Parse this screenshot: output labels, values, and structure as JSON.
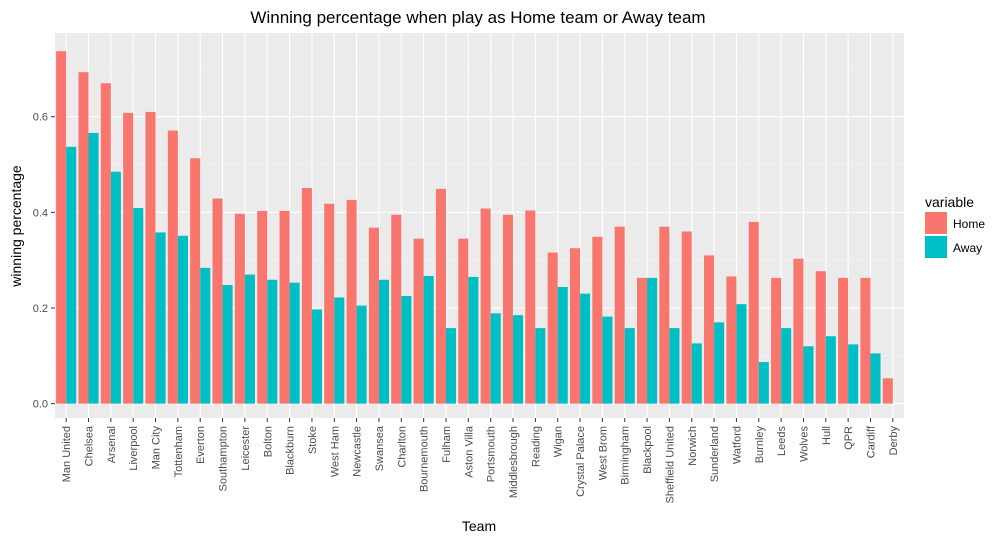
{
  "chart_data": {
    "type": "bar",
    "title": "Winning percentage when play as Home team or Away team",
    "xlabel": "Team",
    "ylabel": "winning percentage",
    "ylim": [
      -0.03,
      0.775
    ],
    "yticks": [
      "0.0",
      "0.2",
      "0.4",
      "0.6"
    ],
    "grid": true,
    "legend": {
      "title": "variable",
      "placement": "right",
      "entries": [
        {
          "label": "Home",
          "color": "#F8766D"
        },
        {
          "label": "Away",
          "color": "#00BFC4"
        }
      ]
    },
    "categories": [
      "Man United",
      "Chelsea",
      "Arsenal",
      "Liverpool",
      "Man City",
      "Tottenham",
      "Everton",
      "Southampton",
      "Leicester",
      "Bolton",
      "Blackburn",
      "Stoke",
      "West Ham",
      "Newcastle",
      "Swansea",
      "Charlton",
      "Bournemouth",
      "Fulham",
      "Aston Villa",
      "Portsmouth",
      "Middlesbrough",
      "Reading",
      "Wigan",
      "Crystal Palace",
      "West Brom",
      "Birmingham",
      "Blackpool",
      "Sheffield United",
      "Norwich",
      "Sunderland",
      "Watford",
      "Burnley",
      "Leeds",
      "Wolves",
      "Hull",
      "QPR",
      "Cardiff",
      "Derby"
    ],
    "series": [
      {
        "name": "Home",
        "color": "#F8766D",
        "values": [
          0.737,
          0.693,
          0.67,
          0.608,
          0.61,
          0.571,
          0.513,
          0.429,
          0.397,
          0.403,
          0.403,
          0.451,
          0.418,
          0.426,
          0.368,
          0.395,
          0.345,
          0.449,
          0.345,
          0.408,
          0.395,
          0.404,
          0.316,
          0.325,
          0.349,
          0.37,
          0.263,
          0.37,
          0.36,
          0.31,
          0.266,
          0.38,
          0.263,
          0.303,
          0.277,
          0.263,
          0.263,
          0.053
        ]
      },
      {
        "name": "Away",
        "color": "#00BFC4",
        "values": [
          0.537,
          0.566,
          0.485,
          0.409,
          0.358,
          0.351,
          0.284,
          0.248,
          0.27,
          0.259,
          0.253,
          0.197,
          0.222,
          0.205,
          0.259,
          0.225,
          0.267,
          0.158,
          0.265,
          0.189,
          0.185,
          0.158,
          0.244,
          0.23,
          0.182,
          0.158,
          0.263,
          0.158,
          0.126,
          0.17,
          0.208,
          0.087,
          0.158,
          0.12,
          0.141,
          0.124,
          0.105,
          0.0
        ]
      }
    ]
  }
}
